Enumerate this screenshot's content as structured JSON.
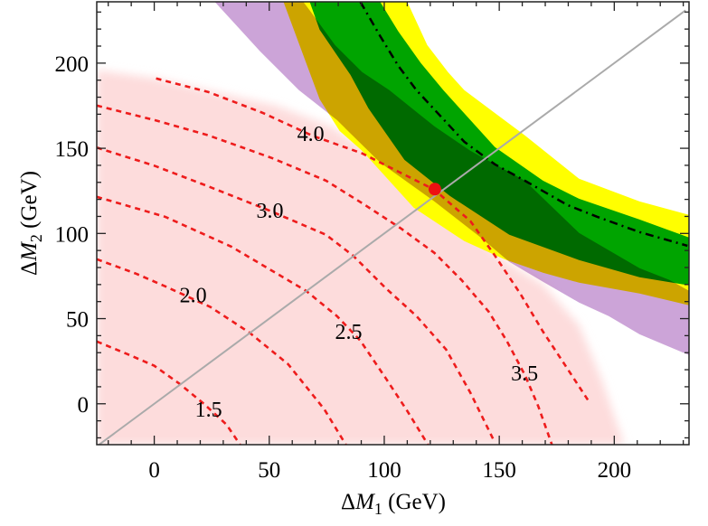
{
  "chart_data": {
    "type": "contour",
    "xlabel": {
      "prefix": "Δ",
      "var": "M",
      "sub": "1",
      "unit": " (GeV)"
    },
    "ylabel": {
      "prefix": "Δ",
      "var": "M",
      "sub": "2",
      "unit": " (GeV)"
    },
    "xlim": [
      -25,
      232.5
    ],
    "ylim": [
      -24,
      236
    ],
    "xticks": [
      0,
      50,
      100,
      150,
      200
    ],
    "yticks": [
      0,
      50,
      100,
      150,
      200
    ],
    "minor_tick_step": 10,
    "grid": false,
    "colors": {
      "pink_region": "#fddcdc",
      "yellow_band": "#ffff00",
      "green_band": "#00a400",
      "purple_band": "#cca4d8",
      "contour": "#ee1c1c",
      "diagonal": "#aaaaaa",
      "dashdot": "#000000",
      "point": "#ee1111"
    },
    "pink_region": [
      [
        -25,
        195.8
      ],
      [
        0.8,
        191
      ],
      [
        53,
        175
      ],
      [
        76.6,
        162.9
      ],
      [
        98.2,
        144.3
      ],
      [
        129.7,
        109.8
      ],
      [
        153.2,
        83.3
      ],
      [
        169,
        70
      ],
      [
        184.7,
        46.2
      ],
      [
        194.5,
        14.3
      ],
      [
        204.3,
        -24
      ],
      [
        -25,
        -24
      ]
    ],
    "bands": {
      "yellow": {
        "lower": [
          [
            56.2,
            236
          ],
          [
            65.6,
            201.6
          ],
          [
            71.9,
            178.8
          ],
          [
            80.6,
            160.2
          ],
          [
            90.4,
            148.5
          ],
          [
            112.8,
            115.1
          ],
          [
            134.8,
            95.5
          ],
          [
            152.1,
            84.9
          ],
          [
            169,
            76.9
          ],
          [
            184.7,
            71.1
          ],
          [
            211,
            64.7
          ],
          [
            232.5,
            57.8
          ]
        ],
        "upper": [
          [
            110,
            236
          ],
          [
            118.7,
            210.6
          ],
          [
            127.7,
            194.7
          ],
          [
            134.8,
            184.1
          ],
          [
            161.1,
            157.6
          ],
          [
            184.7,
            132.1
          ],
          [
            211,
            118.8
          ],
          [
            232.5,
            110.9
          ]
        ]
      },
      "green": {
        "lower": [
          [
            67.6,
            236
          ],
          [
            71.9,
            219.6
          ],
          [
            85.3,
            193.1
          ],
          [
            93.1,
            173.5
          ],
          [
            108.8,
            143.2
          ],
          [
            128.5,
            122
          ],
          [
            154.4,
            99.2
          ],
          [
            184.7,
            84.4
          ],
          [
            211,
            74.3
          ],
          [
            232.5,
            69.5
          ]
        ],
        "upper": [
          [
            98.2,
            236
          ],
          [
            106.1,
            218.6
          ],
          [
            115.9,
            200
          ],
          [
            125.7,
            184.1
          ],
          [
            148.1,
            150.7
          ],
          [
            169,
            131
          ],
          [
            184.7,
            120.4
          ],
          [
            211,
            108.2
          ],
          [
            232.5,
            97.6
          ]
        ]
      },
      "purple": {
        "lower": [
          [
            26.3,
            236
          ],
          [
            46,
            206.9
          ],
          [
            62.9,
            184.1
          ],
          [
            79.4,
            166.6
          ],
          [
            98.2,
            141.6
          ],
          [
            121.8,
            118.8
          ],
          [
            141.5,
            98.1
          ],
          [
            154.4,
            83.3
          ],
          [
            169,
            71.6
          ],
          [
            184.7,
            59.4
          ],
          [
            197.6,
            51.5
          ],
          [
            211,
            40.8
          ],
          [
            232.5,
            28.6
          ]
        ],
        "upper": [
          [
            64.8,
            236
          ],
          [
            68,
            230.2
          ],
          [
            78.6,
            210.6
          ],
          [
            90.4,
            194.7
          ],
          [
            102.2,
            184.1
          ],
          [
            121.8,
            162.9
          ],
          [
            137.5,
            148.5
          ],
          [
            161.1,
            131
          ],
          [
            184.7,
            100.3
          ],
          [
            211,
            79.6
          ],
          [
            224,
            72.7
          ],
          [
            232.5,
            66.3
          ]
        ]
      }
    },
    "dashdot_line": [
      [
        89.6,
        236
      ],
      [
        98.2,
        215.9
      ],
      [
        106.1,
        198.4
      ],
      [
        114,
        184.1
      ],
      [
        134.8,
        153.8
      ],
      [
        148.1,
        140.6
      ],
      [
        161.1,
        131
      ],
      [
        179.6,
        116.7
      ],
      [
        192.5,
        109.8
      ],
      [
        211,
        100.8
      ],
      [
        231.8,
        92.8
      ]
    ],
    "diagonal_line": [
      [
        -25,
        -25
      ],
      [
        231,
        231
      ]
    ],
    "contours": [
      {
        "label": "1.5",
        "label_at": [
          23.6,
          -3.2
        ],
        "points": [
          [
            -25,
            36.6
          ],
          [
            -11.8,
            29.2
          ],
          [
            0,
            22.3
          ],
          [
            11,
            11.7
          ],
          [
            21.6,
            0
          ],
          [
            31.4,
            -12.2
          ],
          [
            37.3,
            -24
          ]
        ]
      },
      {
        "label": "2.0",
        "label_at": [
          16.9,
          63.7
        ],
        "points": [
          [
            -25,
            84.9
          ],
          [
            -7.9,
            76.4
          ],
          [
            4.7,
            69
          ],
          [
            24.4,
            56.8
          ],
          [
            41.3,
            41.9
          ],
          [
            58.2,
            23.3
          ],
          [
            73.9,
            -3.2
          ],
          [
            83.3,
            -24
          ]
        ]
      },
      {
        "label": "2.5",
        "label_at": [
          84.5,
          42.4
        ],
        "points": [
          [
            -25,
            121.5
          ],
          [
            4.7,
            109.8
          ],
          [
            33.4,
            92.3
          ],
          [
            66,
            66.3
          ],
          [
            79.4,
            51.5
          ],
          [
            89.6,
            37.1
          ],
          [
            101,
            14.3
          ],
          [
            110,
            -4.2
          ],
          [
            119,
            -24
          ]
        ]
      },
      {
        "label": "3.0",
        "label_at": [
          50.3,
          113.5
        ],
        "points": [
          [
            -25,
            150.4
          ],
          [
            0,
            139.8
          ],
          [
            23.6,
            127.6
          ],
          [
            50.3,
            113.3
          ],
          [
            74.7,
            99.2
          ],
          [
            86.4,
            87
          ],
          [
            101,
            67.4
          ],
          [
            114,
            51.5
          ],
          [
            126.9,
            31.8
          ],
          [
            137.5,
            6.4
          ],
          [
            148.1,
            -22.8
          ]
        ]
      },
      {
        "label": "3.5",
        "label_at": [
          161,
          18
        ],
        "points": [
          [
            -25,
            175.1
          ],
          [
            0,
            166.6
          ],
          [
            23.6,
            157.6
          ],
          [
            51.1,
            144.3
          ],
          [
            74.7,
            131
          ],
          [
            90.4,
            117.8
          ],
          [
            107.3,
            102.9
          ],
          [
            121.8,
            88.6
          ],
          [
            133.6,
            72.7
          ],
          [
            145.4,
            54.1
          ],
          [
            153.2,
            37.1
          ],
          [
            161.1,
            17
          ],
          [
            167,
            -1.6
          ],
          [
            172.9,
            -24
          ]
        ]
      },
      {
        "label": "4.0",
        "label_at": [
          68,
          158.6
        ],
        "points": [
          [
            0.8,
            191
          ],
          [
            23.6,
            183
          ],
          [
            47.2,
            170.8
          ],
          [
            68.4,
            157.6
          ],
          [
            90.4,
            147
          ],
          [
            106.1,
            136.3
          ],
          [
            121.8,
            125.7
          ],
          [
            137.5,
            107.2
          ],
          [
            148.1,
            87
          ],
          [
            159.1,
            64.7
          ],
          [
            169,
            42.4
          ],
          [
            178.8,
            22.3
          ],
          [
            188.6,
            2.1
          ]
        ]
      }
    ],
    "point": [
      122,
      126
    ]
  }
}
